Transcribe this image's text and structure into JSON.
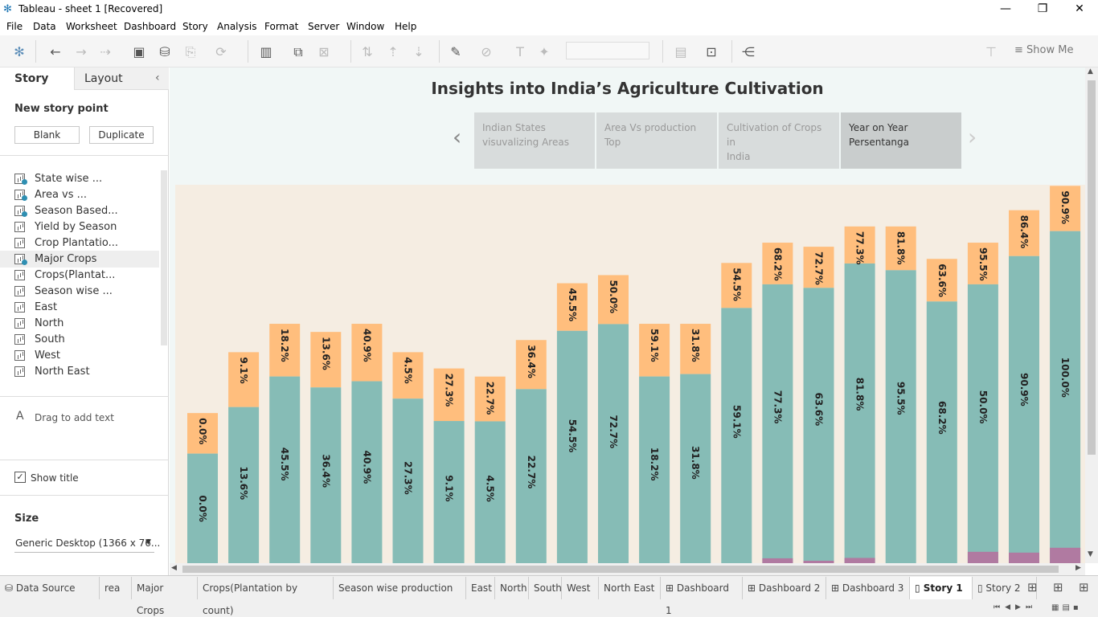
{
  "window": {
    "title": "Tableau - sheet 1 [Recovered]"
  },
  "menu": [
    "File",
    "Data",
    "Worksheet",
    "Dashboard",
    "Story",
    "Analysis",
    "Format",
    "Server",
    "Window",
    "Help"
  ],
  "toolbar": {
    "show_me": "Show Me"
  },
  "side": {
    "tab_story": "Story",
    "tab_layout": "Layout",
    "new_story_point": "New story point",
    "blank": "Blank",
    "duplicate": "Duplicate",
    "sheets": [
      {
        "label": "State wise ...",
        "checked": true
      },
      {
        "label": "Area vs ...",
        "checked": true
      },
      {
        "label": "Season Based...",
        "checked": true
      },
      {
        "label": "Yield by Season",
        "checked": false
      },
      {
        "label": "Crop Plantatio...",
        "checked": false
      },
      {
        "label": "Major Crops",
        "checked": true
      },
      {
        "label": "Crops(Plantat...",
        "checked": false
      },
      {
        "label": "Season wise ...",
        "checked": false
      },
      {
        "label": "East",
        "checked": false
      },
      {
        "label": "North",
        "checked": false
      },
      {
        "label": "South",
        "checked": false
      },
      {
        "label": "West",
        "checked": false
      },
      {
        "label": "North East",
        "checked": false
      }
    ],
    "drag_text": "Drag to add text",
    "show_title": "Show title",
    "size_label": "Size",
    "size_value": "Generic Desktop (1366 x 76..."
  },
  "story": {
    "title": "Insights into India’s Agriculture Cultivation",
    "points": [
      {
        "line1": "Indian States",
        "line2": "visuvalizing Areas"
      },
      {
        "line1": "Area Vs production",
        "line2": "Top"
      },
      {
        "line1": "Cultivation of Crops in",
        "line2": "India"
      },
      {
        "line1": "Year on Year",
        "line2": "Persentanga"
      }
    ]
  },
  "chart_data": {
    "type": "bar",
    "stacked": true,
    "series_colors": {
      "lower": "#86bcb6",
      "upper": "#ffbe7d",
      "base": "#b07aa1"
    },
    "lower_labels": [
      "0.0%",
      "13.6%",
      "45.5%",
      "36.4%",
      "40.9%",
      "27.3%",
      "9.1%",
      "4.5%",
      "22.7%",
      "54.5%",
      "72.7%",
      "18.2%",
      "31.8%",
      "59.1%",
      "77.3%",
      "63.6%",
      "81.8%",
      "95.5%",
      "68.2%",
      "50.0%",
      "90.9%",
      "100.0%"
    ],
    "upper_labels": [
      "0.0%",
      "9.1%",
      "18.2%",
      "13.6%",
      "40.9%",
      "4.5%",
      "27.3%",
      "22.7%",
      "36.4%",
      "45.5%",
      "50.0%",
      "59.1%",
      "31.8%",
      "54.5%",
      "68.2%",
      "72.7%",
      "77.3%",
      "81.8%",
      "63.6%",
      "95.5%",
      "86.4%",
      "90.9%"
    ],
    "totals": [
      37,
      52,
      59,
      57,
      59,
      52,
      48,
      46,
      55,
      69,
      71,
      59,
      59,
      74,
      79,
      78,
      83,
      83,
      75,
      79,
      87,
      93
    ],
    "lower_share": [
      0.73,
      0.74,
      0.78,
      0.76,
      0.76,
      0.78,
      0.73,
      0.76,
      0.78,
      0.83,
      0.83,
      0.78,
      0.79,
      0.85,
      0.87,
      0.87,
      0.89,
      0.87,
      0.86,
      0.87,
      0.87,
      0.88
    ],
    "base_values": [
      0,
      0,
      0,
      0,
      0,
      0,
      0,
      0,
      0,
      0,
      0,
      0,
      0,
      0,
      1.2,
      0.6,
      1.3,
      0,
      0,
      2.8,
      2.6,
      3.8
    ]
  },
  "bottom_tabs": [
    {
      "label": "Data Source",
      "icon": "db"
    },
    {
      "label": "rea",
      "icon": ""
    },
    {
      "label": "Major Crops",
      "icon": ""
    },
    {
      "label": "Crops(Plantation by count)",
      "icon": ""
    },
    {
      "label": "Season wise production",
      "icon": ""
    },
    {
      "label": "East",
      "icon": ""
    },
    {
      "label": "North",
      "icon": ""
    },
    {
      "label": "South",
      "icon": ""
    },
    {
      "label": "West",
      "icon": ""
    },
    {
      "label": "North East",
      "icon": ""
    },
    {
      "label": "Dashboard 1",
      "icon": "dash"
    },
    {
      "label": "Dashboard 2",
      "icon": "dash"
    },
    {
      "label": "Dashboard 3",
      "icon": "dash"
    },
    {
      "label": "Story 1",
      "icon": "story",
      "active": true
    },
    {
      "label": "Story 2",
      "icon": "story"
    }
  ]
}
